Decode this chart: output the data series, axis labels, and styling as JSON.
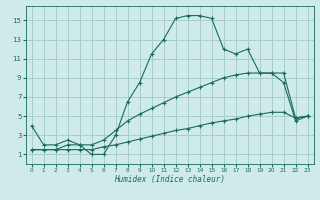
{
  "xlabel": "Humidex (Indice chaleur)",
  "background_color": "#ceeaea",
  "grid_color": "#a8cccc",
  "line_color": "#1a6b5a",
  "xlim": [
    -0.5,
    23.5
  ],
  "ylim": [
    0.0,
    16.5
  ],
  "xticks": [
    0,
    1,
    2,
    3,
    4,
    5,
    6,
    7,
    8,
    9,
    10,
    11,
    12,
    13,
    14,
    15,
    16,
    17,
    18,
    19,
    20,
    21,
    22,
    23
  ],
  "yticks": [
    1,
    3,
    5,
    7,
    9,
    11,
    13,
    15
  ],
  "curve1_x": [
    0,
    1,
    2,
    3,
    4,
    5,
    6,
    7,
    8,
    9,
    10,
    11,
    12,
    13,
    14,
    15,
    16,
    17,
    18,
    19,
    20,
    21,
    22,
    23
  ],
  "curve1_y": [
    4.0,
    2.0,
    2.0,
    2.5,
    2.0,
    1.0,
    1.0,
    3.0,
    6.5,
    8.5,
    11.5,
    13.0,
    15.2,
    15.5,
    15.5,
    15.2,
    12.0,
    11.5,
    12.0,
    9.5,
    9.5,
    8.5,
    4.5,
    5.0
  ],
  "curve2_x": [
    0,
    1,
    2,
    3,
    4,
    5,
    6,
    7,
    8,
    9,
    10,
    11,
    12,
    13,
    14,
    15,
    16,
    17,
    18,
    19,
    20,
    21,
    22,
    23
  ],
  "curve2_y": [
    1.5,
    1.5,
    1.5,
    2.0,
    2.0,
    2.0,
    2.5,
    3.5,
    4.5,
    5.2,
    5.8,
    6.4,
    7.0,
    7.5,
    8.0,
    8.5,
    9.0,
    9.3,
    9.5,
    9.5,
    9.5,
    9.5,
    4.8,
    5.0
  ],
  "curve3_x": [
    0,
    1,
    2,
    3,
    4,
    5,
    6,
    7,
    8,
    9,
    10,
    11,
    12,
    13,
    14,
    15,
    16,
    17,
    18,
    19,
    20,
    21,
    22,
    23
  ],
  "curve3_y": [
    1.5,
    1.5,
    1.5,
    1.5,
    1.5,
    1.5,
    1.8,
    2.0,
    2.3,
    2.6,
    2.9,
    3.2,
    3.5,
    3.7,
    4.0,
    4.3,
    4.5,
    4.7,
    5.0,
    5.2,
    5.4,
    5.4,
    4.8,
    5.0
  ]
}
